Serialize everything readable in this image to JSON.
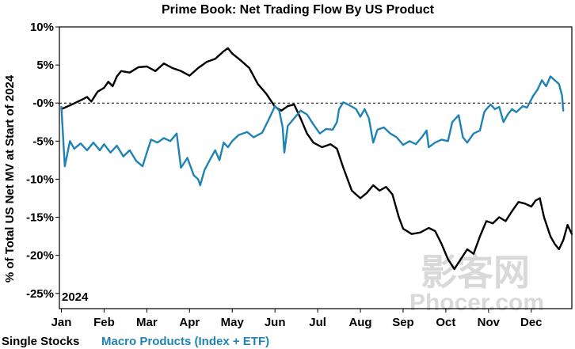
{
  "chart_data": {
    "type": "line",
    "title": "Prime Book: Net Trading Flow By US Product",
    "ylabel": "% of Total US Net MV at Start of 2024",
    "year_label": "2024",
    "ylim": [
      -27,
      10
    ],
    "yticks": [
      {
        "value": 10,
        "label": "10%"
      },
      {
        "value": 5,
        "label": "5%"
      },
      {
        "value": 0,
        "label": "-0%"
      },
      {
        "value": -5,
        "label": "-5%"
      },
      {
        "value": -10,
        "label": "-10%"
      },
      {
        "value": -15,
        "label": "-15%"
      },
      {
        "value": -20,
        "label": "-20%"
      },
      {
        "value": -25,
        "label": "-25%"
      }
    ],
    "xlim": [
      0,
      11.95
    ],
    "xticks": [
      {
        "value": 0,
        "label": "Jan"
      },
      {
        "value": 1,
        "label": "Feb"
      },
      {
        "value": 2,
        "label": "Mar"
      },
      {
        "value": 3,
        "label": "Apr"
      },
      {
        "value": 4,
        "label": "May"
      },
      {
        "value": 5,
        "label": "Jun"
      },
      {
        "value": 6,
        "label": "Jul"
      },
      {
        "value": 7,
        "label": "Aug"
      },
      {
        "value": 8,
        "label": "Sep"
      },
      {
        "value": 9,
        "label": "Oct"
      },
      {
        "value": 10,
        "label": "Nov"
      },
      {
        "value": 11,
        "label": "Dec"
      }
    ],
    "reference_line": 0,
    "x_unit": "month (0 = start of Jan 2024)",
    "series": [
      {
        "name": "Single Stocks",
        "color": "#000000",
        "points": [
          [
            0.0,
            -0.8
          ],
          [
            0.2,
            -0.3
          ],
          [
            0.35,
            0.1
          ],
          [
            0.5,
            0.5
          ],
          [
            0.6,
            0.8
          ],
          [
            0.7,
            0.2
          ],
          [
            0.85,
            1.5
          ],
          [
            1.0,
            2.0
          ],
          [
            1.1,
            2.8
          ],
          [
            1.2,
            2.2
          ],
          [
            1.3,
            3.5
          ],
          [
            1.4,
            4.2
          ],
          [
            1.6,
            4.0
          ],
          [
            1.8,
            4.7
          ],
          [
            2.0,
            4.8
          ],
          [
            2.2,
            4.2
          ],
          [
            2.4,
            5.2
          ],
          [
            2.6,
            4.6
          ],
          [
            2.8,
            4.2
          ],
          [
            3.0,
            3.6
          ],
          [
            3.2,
            4.6
          ],
          [
            3.4,
            5.4
          ],
          [
            3.6,
            5.8
          ],
          [
            3.8,
            6.8
          ],
          [
            3.9,
            7.2
          ],
          [
            4.0,
            6.5
          ],
          [
            4.2,
            5.6
          ],
          [
            4.4,
            4.6
          ],
          [
            4.6,
            2.5
          ],
          [
            4.8,
            1.2
          ],
          [
            5.0,
            -0.5
          ],
          [
            5.15,
            -1.0
          ],
          [
            5.3,
            -0.4
          ],
          [
            5.45,
            -0.2
          ],
          [
            5.6,
            -2.0
          ],
          [
            5.75,
            -4.0
          ],
          [
            5.9,
            -5.2
          ],
          [
            6.1,
            -5.8
          ],
          [
            6.3,
            -5.4
          ],
          [
            6.45,
            -6.0
          ],
          [
            6.6,
            -8.5
          ],
          [
            6.8,
            -11.5
          ],
          [
            7.0,
            -12.5
          ],
          [
            7.15,
            -11.8
          ],
          [
            7.3,
            -10.8
          ],
          [
            7.45,
            -11.5
          ],
          [
            7.6,
            -11.0
          ],
          [
            7.75,
            -12.0
          ],
          [
            7.9,
            -15.0
          ],
          [
            8.0,
            -16.5
          ],
          [
            8.2,
            -17.2
          ],
          [
            8.4,
            -17.0
          ],
          [
            8.6,
            -16.4
          ],
          [
            8.75,
            -16.8
          ],
          [
            8.9,
            -18.5
          ],
          [
            9.05,
            -20.5
          ],
          [
            9.2,
            -21.8
          ],
          [
            9.35,
            -20.5
          ],
          [
            9.5,
            -19.2
          ],
          [
            9.65,
            -19.8
          ],
          [
            9.8,
            -17.5
          ],
          [
            9.95,
            -15.5
          ],
          [
            10.1,
            -15.8
          ],
          [
            10.25,
            -15.0
          ],
          [
            10.4,
            -15.5
          ],
          [
            10.55,
            -14.2
          ],
          [
            10.7,
            -13.0
          ],
          [
            10.85,
            -13.2
          ],
          [
            11.0,
            -13.6
          ],
          [
            11.1,
            -12.8
          ],
          [
            11.2,
            -12.5
          ],
          [
            11.3,
            -15.0
          ],
          [
            11.45,
            -17.5
          ],
          [
            11.55,
            -18.5
          ],
          [
            11.65,
            -19.2
          ],
          [
            11.75,
            -18.0
          ],
          [
            11.85,
            -16.0
          ],
          [
            11.95,
            -17.2
          ]
        ]
      },
      {
        "name": "Macro Products (Index + ETF)",
        "color": "#1f83b4",
        "points": [
          [
            0.0,
            -0.5
          ],
          [
            0.08,
            -8.3
          ],
          [
            0.2,
            -5.0
          ],
          [
            0.3,
            -6.0
          ],
          [
            0.45,
            -5.3
          ],
          [
            0.6,
            -6.2
          ],
          [
            0.75,
            -5.2
          ],
          [
            0.9,
            -6.2
          ],
          [
            1.0,
            -5.4
          ],
          [
            1.15,
            -6.5
          ],
          [
            1.3,
            -5.6
          ],
          [
            1.45,
            -7.0
          ],
          [
            1.6,
            -6.2
          ],
          [
            1.75,
            -7.6
          ],
          [
            1.9,
            -8.3
          ],
          [
            2.0,
            -6.5
          ],
          [
            2.1,
            -4.8
          ],
          [
            2.25,
            -5.2
          ],
          [
            2.4,
            -4.6
          ],
          [
            2.55,
            -5.0
          ],
          [
            2.7,
            -4.0
          ],
          [
            2.8,
            -8.5
          ],
          [
            2.95,
            -7.2
          ],
          [
            3.1,
            -9.5
          ],
          [
            3.2,
            -10.0
          ],
          [
            3.25,
            -10.8
          ],
          [
            3.35,
            -8.8
          ],
          [
            3.5,
            -7.2
          ],
          [
            3.6,
            -6.2
          ],
          [
            3.7,
            -7.5
          ],
          [
            3.8,
            -5.2
          ],
          [
            3.9,
            -5.8
          ],
          [
            4.0,
            -5.0
          ],
          [
            4.15,
            -4.2
          ],
          [
            4.35,
            -3.8
          ],
          [
            4.5,
            -4.5
          ],
          [
            4.7,
            -3.9
          ],
          [
            4.85,
            -2.2
          ],
          [
            5.0,
            -0.4
          ],
          [
            5.1,
            -1.0
          ],
          [
            5.18,
            -3.2
          ],
          [
            5.22,
            -6.5
          ],
          [
            5.3,
            -3.0
          ],
          [
            5.45,
            -2.0
          ],
          [
            5.6,
            -1.0
          ],
          [
            5.75,
            -1.5
          ],
          [
            5.9,
            -2.8
          ],
          [
            6.05,
            -4.0
          ],
          [
            6.2,
            -3.4
          ],
          [
            6.35,
            -3.5
          ],
          [
            6.45,
            -2.5
          ],
          [
            6.5,
            -0.8
          ],
          [
            6.6,
            0.1
          ],
          [
            6.75,
            -0.3
          ],
          [
            6.9,
            -0.8
          ],
          [
            7.0,
            -1.8
          ],
          [
            7.1,
            -0.8
          ],
          [
            7.2,
            -2.0
          ],
          [
            7.3,
            -5.2
          ],
          [
            7.4,
            -3.5
          ],
          [
            7.55,
            -3.2
          ],
          [
            7.7,
            -4.0
          ],
          [
            7.85,
            -4.5
          ],
          [
            8.0,
            -5.5
          ],
          [
            8.15,
            -5.0
          ],
          [
            8.3,
            -5.4
          ],
          [
            8.45,
            -4.4
          ],
          [
            8.55,
            -3.6
          ],
          [
            8.6,
            -5.8
          ],
          [
            8.75,
            -5.2
          ],
          [
            8.9,
            -4.8
          ],
          [
            9.05,
            -5.0
          ],
          [
            9.15,
            -2.5
          ],
          [
            9.3,
            -1.6
          ],
          [
            9.4,
            -4.5
          ],
          [
            9.5,
            -5.2
          ],
          [
            9.65,
            -4.0
          ],
          [
            9.8,
            -3.6
          ],
          [
            9.9,
            -1.2
          ],
          [
            9.95,
            -0.8
          ],
          [
            10.05,
            -0.2
          ],
          [
            10.15,
            -0.8
          ],
          [
            10.25,
            -0.5
          ],
          [
            10.35,
            -2.5
          ],
          [
            10.45,
            -1.5
          ],
          [
            10.55,
            -0.8
          ],
          [
            10.65,
            -1.2
          ],
          [
            10.8,
            -0.4
          ],
          [
            10.9,
            -0.6
          ],
          [
            11.05,
            1.0
          ],
          [
            11.15,
            1.8
          ],
          [
            11.25,
            3.0
          ],
          [
            11.35,
            2.2
          ],
          [
            11.45,
            3.5
          ],
          [
            11.55,
            3.0
          ],
          [
            11.65,
            2.5
          ],
          [
            11.72,
            1.0
          ],
          [
            11.75,
            -1.0
          ]
        ]
      }
    ]
  },
  "watermark": {
    "chars": "影客网",
    "site": "Phocer.com"
  }
}
